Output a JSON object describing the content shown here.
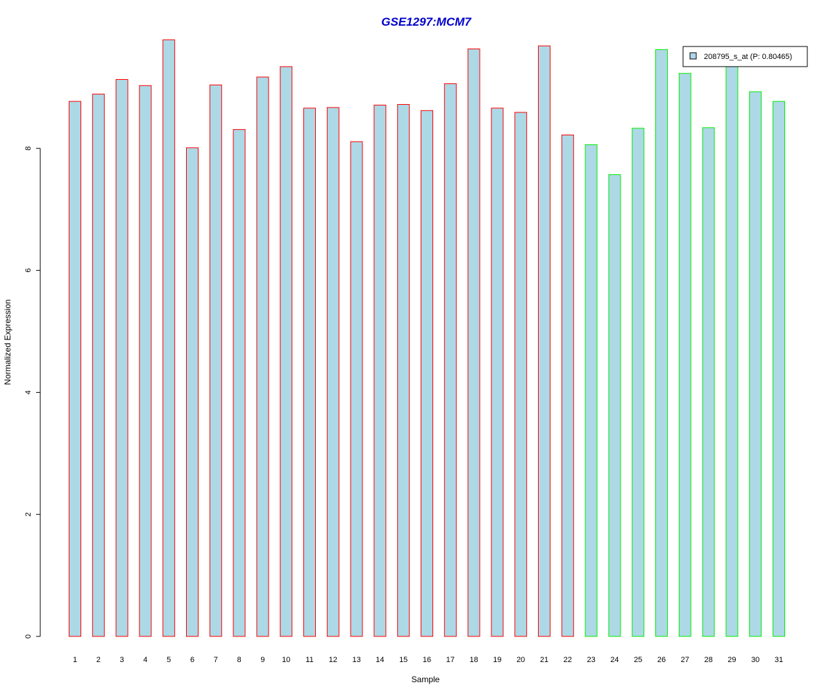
{
  "chart_data": {
    "type": "bar",
    "title": "GSE1297:MCM7",
    "xlabel": "Sample",
    "ylabel": "Normalized Expression",
    "categories": [
      "1",
      "2",
      "3",
      "4",
      "5",
      "6",
      "7",
      "8",
      "9",
      "10",
      "11",
      "12",
      "13",
      "14",
      "15",
      "16",
      "17",
      "18",
      "19",
      "20",
      "21",
      "22",
      "23",
      "24",
      "25",
      "26",
      "27",
      "28",
      "29",
      "30",
      "31"
    ],
    "series": [
      {
        "name": "208795_s_at (P: 0.80465)",
        "values": [
          8.77,
          8.89,
          9.13,
          9.03,
          9.78,
          8.01,
          9.04,
          8.31,
          9.17,
          9.34,
          8.66,
          8.67,
          8.11,
          8.71,
          8.72,
          8.62,
          9.06,
          9.63,
          8.66,
          8.59,
          9.68,
          8.22,
          8.06,
          7.57,
          8.33,
          9.62,
          9.23,
          8.34,
          9.45,
          8.93,
          8.77
        ]
      }
    ],
    "groups": [
      "red",
      "red",
      "red",
      "red",
      "red",
      "red",
      "red",
      "red",
      "red",
      "red",
      "red",
      "red",
      "red",
      "red",
      "red",
      "red",
      "red",
      "red",
      "red",
      "red",
      "red",
      "red",
      "green",
      "green",
      "green",
      "green",
      "green",
      "green",
      "green",
      "green",
      "green"
    ],
    "yticks": [
      0,
      2,
      4,
      6,
      8
    ],
    "ylim": [
      0,
      9.8
    ],
    "legend_position": "top-right",
    "grid": false,
    "colors": {
      "title": "#0000cc",
      "bar_fill": "#add8e6",
      "red": "#ff0000",
      "green": "#00ee00",
      "axis": "#000000"
    }
  }
}
